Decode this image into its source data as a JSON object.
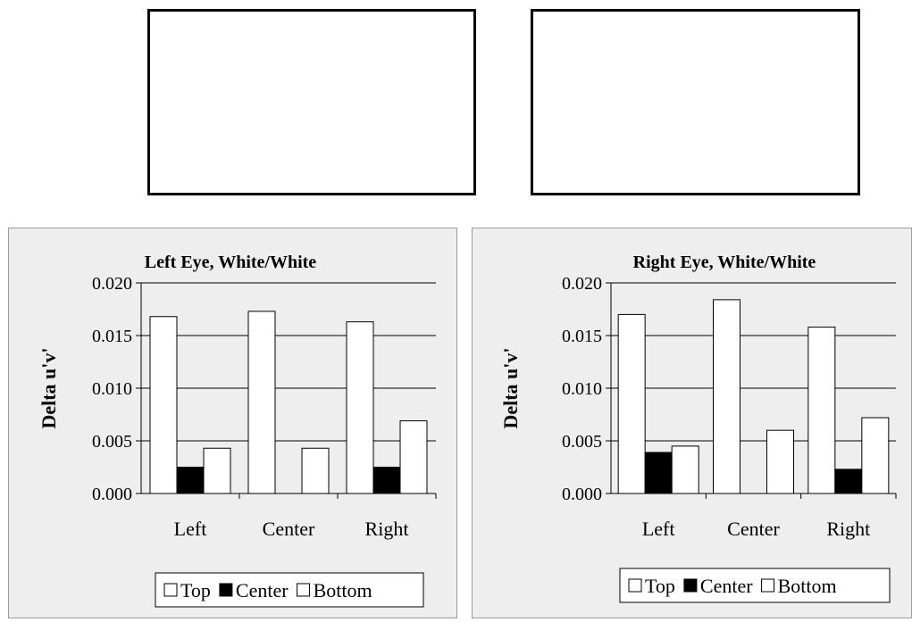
{
  "boxes": {
    "left_label": "",
    "right_label": ""
  },
  "chart_data": [
    {
      "type": "bar",
      "title": "Left Eye, White/White",
      "ylabel": "Delta u'v'",
      "xlabel": "",
      "categories": [
        "Left",
        "Center",
        "Right"
      ],
      "ylim": [
        0,
        0.02
      ],
      "yticks": [
        "0.000",
        "0.005",
        "0.010",
        "0.015",
        "0.020"
      ],
      "grid": true,
      "legend_position": "bottom",
      "series": [
        {
          "name": "Top",
          "color": "#ffffff",
          "values": [
            0.0168,
            0.0173,
            0.0163
          ]
        },
        {
          "name": "Center",
          "color": "#000000",
          "values": [
            0.0025,
            null,
            0.0025
          ]
        },
        {
          "name": "Bottom",
          "color": "#ffffff",
          "values": [
            0.0043,
            0.0043,
            0.0069
          ]
        }
      ]
    },
    {
      "type": "bar",
      "title": "Right Eye, White/White",
      "ylabel": "Delta u'v'",
      "xlabel": "",
      "categories": [
        "Left",
        "Center",
        "Right"
      ],
      "ylim": [
        0,
        0.02
      ],
      "yticks": [
        "0.000",
        "0.005",
        "0.010",
        "0.015",
        "0.020"
      ],
      "grid": true,
      "legend_position": "bottom",
      "series": [
        {
          "name": "Top",
          "color": "#ffffff",
          "values": [
            0.017,
            0.0184,
            0.0158
          ]
        },
        {
          "name": "Center",
          "color": "#000000",
          "values": [
            0.0039,
            null,
            0.0023
          ]
        },
        {
          "name": "Bottom",
          "color": "#ffffff",
          "values": [
            0.0045,
            0.006,
            0.0072
          ]
        }
      ]
    }
  ]
}
